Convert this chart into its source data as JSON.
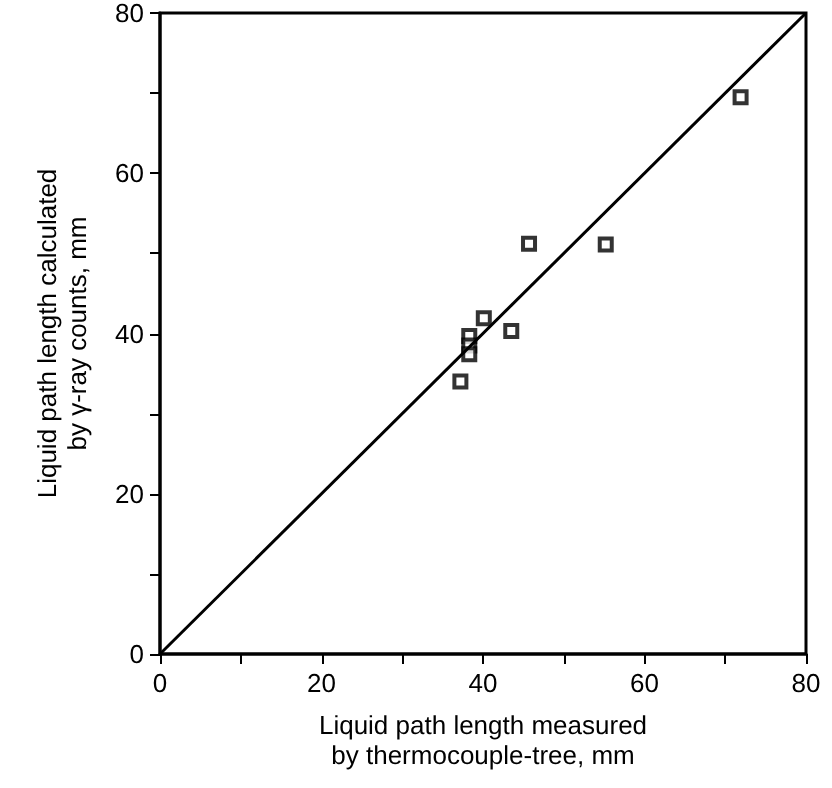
{
  "chart_data": {
    "type": "scatter",
    "xlabel": "Liquid path length measured\nby thermocouple-tree, mm",
    "ylabel": "Liquid path length calculated\nby γ-ray counts, mm",
    "series": [
      {
        "color": "#000000",
        "marker": "square",
        "x": [
          71.9,
          45.7,
          55.2,
          40.1,
          43.5,
          38.3,
          38.3,
          38.3,
          37.2
        ],
        "values": [
          69.5,
          51.2,
          51.1,
          41.9,
          40.3,
          39.7,
          38.5,
          37.4,
          34.0
        ]
      },
      {
        "type": "line",
        "color": "#000000",
        "marker": "none",
        "x": [
          0,
          80
        ],
        "values": [
          0,
          80
        ]
      }
    ],
    "xlim": [
      0,
      80
    ],
    "ylim": [
      0,
      80
    ],
    "xticks": [
      0,
      {
        "value": 10,
        "label": null
      },
      20,
      {
        "value": 30,
        "label": null
      },
      40,
      {
        "value": 50,
        "label": null
      },
      60,
      {
        "value": 70,
        "label": null
      },
      80
    ],
    "yticks": [
      0,
      {
        "value": 10,
        "label": null
      },
      20,
      {
        "value": 30,
        "label": null
      },
      40,
      {
        "value": 50,
        "label": null
      },
      60,
      {
        "value": 70,
        "label": null
      },
      80
    ],
    "grid": false
  }
}
